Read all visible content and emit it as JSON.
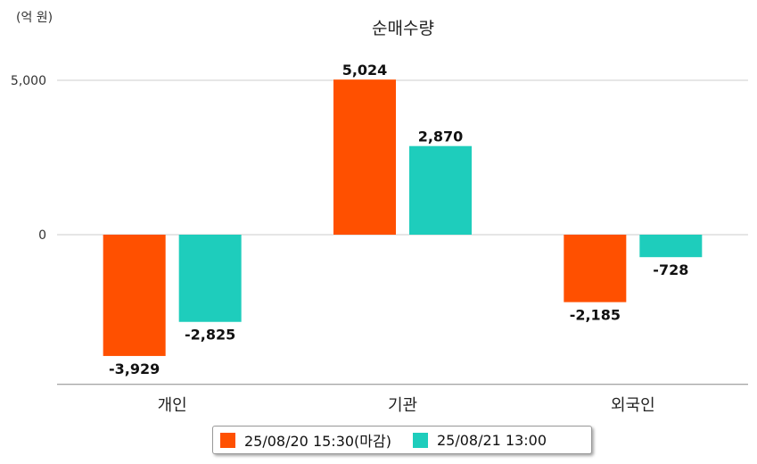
{
  "chart_data": {
    "type": "bar",
    "title": "순매수량",
    "unit_label": "(억 원)",
    "categories": [
      "개인",
      "기관",
      "외국인"
    ],
    "series": [
      {
        "name": "25/08/20 15:30(마감)",
        "color": "#ff5000",
        "values": [
          -3929,
          5024,
          -2185
        ],
        "labels": [
          "-3,929",
          "5,024",
          "-2,185"
        ]
      },
      {
        "name": "25/08/21 13:00",
        "color": "#1ecdbc",
        "values": [
          -2825,
          2870,
          -728
        ],
        "labels": [
          "-2,825",
          "2,870",
          "-728"
        ]
      }
    ],
    "yticks": [
      {
        "value": 0,
        "label": "0"
      },
      {
        "value": 5000,
        "label": "5,000"
      }
    ],
    "ylim": [
      -4850,
      5000
    ],
    "grid": true,
    "legend_position": "bottom"
  }
}
